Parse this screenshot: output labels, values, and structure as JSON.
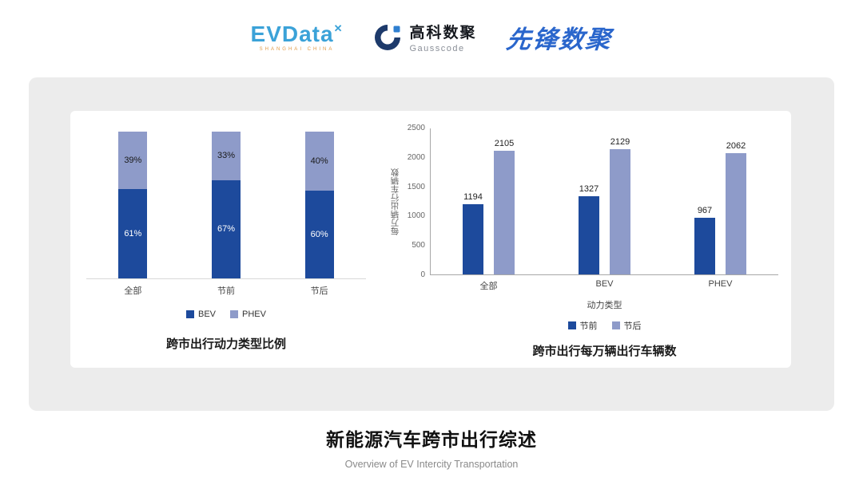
{
  "header": {
    "evdata": {
      "text": "EVData",
      "x": "✕",
      "sub": "SHANGHAI CHINA"
    },
    "gausscode": {
      "cn": "高科数聚",
      "en": "Gausscode"
    },
    "pioneer": {
      "text": "先锋数聚"
    }
  },
  "colors": {
    "bev_dark_blue": "#1d4a9c",
    "phev_light_blue": "#8e9bc9",
    "panel_gray": "#ececec"
  },
  "chart_data": [
    {
      "type": "bar",
      "subtype": "stacked-100-percent",
      "title": "跨市出行动力类型比例",
      "categories": [
        "全部",
        "节前",
        "节后"
      ],
      "series": [
        {
          "name": "BEV",
          "values": [
            61,
            67,
            60
          ],
          "color": "#1d4a9c"
        },
        {
          "name": "PHEV",
          "values": [
            39,
            33,
            40
          ],
          "color": "#8e9bc9"
        }
      ],
      "value_format": "percent",
      "legend_position": "bottom",
      "grid": false
    },
    {
      "type": "bar",
      "subtype": "grouped",
      "title": "跨市出行每万辆出行车辆数",
      "categories": [
        "全部",
        "BEV",
        "PHEV"
      ],
      "xlabel": "动力类型",
      "ylabel": "每万辆出行车辆数",
      "ylim": [
        0,
        2500
      ],
      "yticks": [
        0,
        500,
        1000,
        1500,
        2000,
        2500
      ],
      "series": [
        {
          "name": "节前",
          "values": [
            1194,
            1327,
            967
          ],
          "color": "#1d4a9c"
        },
        {
          "name": "节后",
          "values": [
            2105,
            2129,
            2062
          ],
          "color": "#8e9bc9"
        }
      ],
      "legend_position": "bottom",
      "grid": false
    }
  ],
  "footer": {
    "title": "新能源汽车跨市出行综述",
    "subtitle": "Overview of EV Intercity Transportation"
  }
}
